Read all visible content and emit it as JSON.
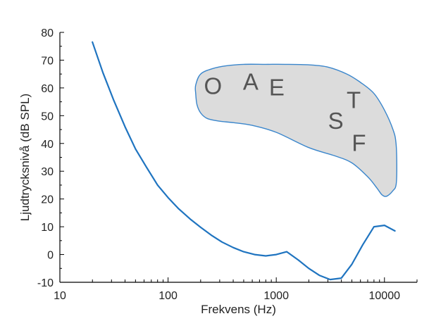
{
  "chart_data": {
    "type": "line",
    "xlabel": "Frekvens (Hz)",
    "ylabel": "Ljudtrycksnivå (dB SPL)",
    "xscale": "log",
    "xlim": [
      10,
      20000
    ],
    "ylim": [
      -10,
      80
    ],
    "x_ticks": [
      10,
      100,
      1000,
      10000
    ],
    "x_tick_labels": [
      "10",
      "100",
      "1000",
      "10000"
    ],
    "y_ticks": [
      -10,
      0,
      10,
      20,
      30,
      40,
      50,
      60,
      70,
      80
    ],
    "y_tick_labels": [
      "-10",
      "0",
      "10",
      "20",
      "30",
      "40",
      "50",
      "60",
      "70",
      "80"
    ],
    "series": [
      {
        "color": "#1f74c0",
        "x": [
          20,
          25,
          31.5,
          40,
          50,
          63,
          80,
          100,
          125,
          160,
          200,
          250,
          315,
          400,
          500,
          630,
          800,
          1000,
          1250,
          1600,
          2000,
          2500,
          3150,
          4000,
          5000,
          6300,
          8000,
          10000,
          12500
        ],
        "y": [
          76.5,
          65.5,
          55.5,
          46,
          38,
          31.5,
          25,
          20.5,
          16.5,
          12.8,
          9.8,
          7,
          4.5,
          2.5,
          1,
          0,
          -0.5,
          0,
          1,
          -2,
          -5,
          -7.5,
          -9,
          -8.5,
          -3.5,
          3.5,
          10,
          10.5,
          8.5
        ]
      }
    ],
    "speech_region": {
      "fill": "#dcdcdc",
      "stroke": "#3a86cc",
      "outline": [
        [
          180,
          61
        ],
        [
          200,
          65
        ],
        [
          260,
          67
        ],
        [
          350,
          68
        ],
        [
          500,
          68.5
        ],
        [
          800,
          68.5
        ],
        [
          1200,
          68.5
        ],
        [
          2000,
          68.3
        ],
        [
          3000,
          67.5
        ],
        [
          4500,
          65
        ],
        [
          6000,
          62
        ],
        [
          8000,
          58
        ],
        [
          10000,
          52
        ],
        [
          12000,
          45
        ],
        [
          12800,
          40
        ],
        [
          13000,
          31
        ],
        [
          12800,
          25
        ],
        [
          12000,
          23
        ],
        [
          10500,
          21
        ],
        [
          9500,
          21.5
        ],
        [
          8500,
          24
        ],
        [
          7000,
          28
        ],
        [
          5000,
          33
        ],
        [
          3500,
          35.5
        ],
        [
          2000,
          38.5
        ],
        [
          1000,
          44
        ],
        [
          600,
          46.5
        ],
        [
          400,
          47.5
        ],
        [
          300,
          48
        ],
        [
          230,
          49
        ],
        [
          200,
          51
        ],
        [
          185,
          54
        ],
        [
          180,
          58
        ]
      ],
      "letters": [
        {
          "text": "O",
          "x": 260,
          "y": 60
        },
        {
          "text": "A",
          "x": 580,
          "y": 61.5
        },
        {
          "text": "E",
          "x": 1010,
          "y": 59.5
        },
        {
          "text": "T",
          "x": 5200,
          "y": 55
        },
        {
          "text": "S",
          "x": 3550,
          "y": 47.5
        },
        {
          "text": "F",
          "x": 5800,
          "y": 39.5
        }
      ]
    }
  }
}
